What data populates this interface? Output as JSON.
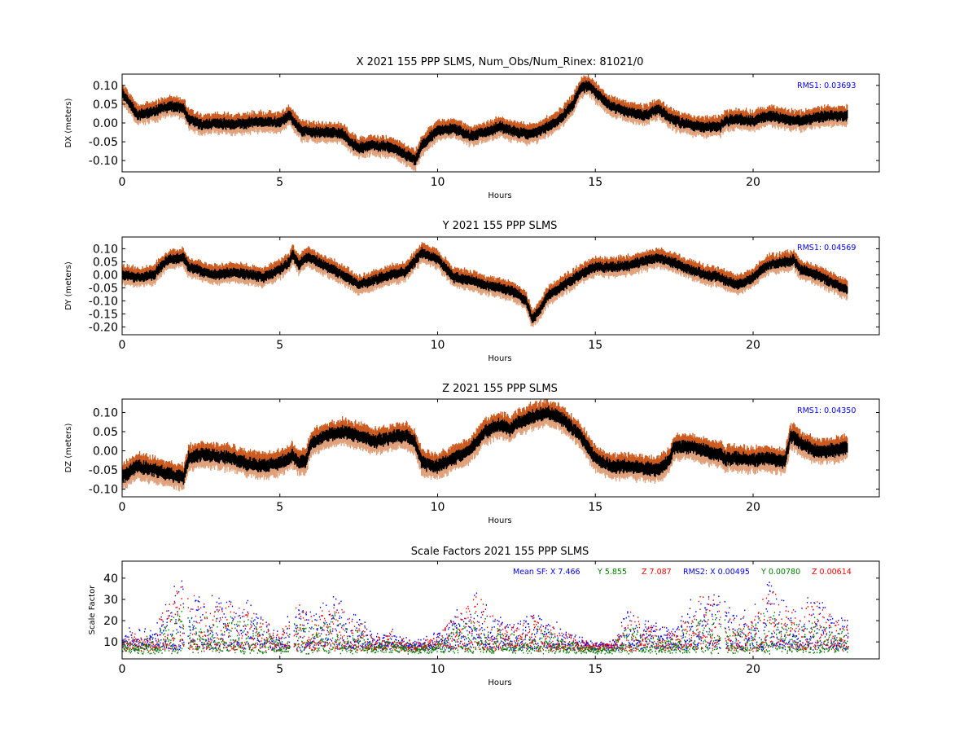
{
  "chart_data": [
    {
      "type": "scatter",
      "title": "X 2021 155 PPP  SLMS, Num_Obs/Num_Rinex: 81021/0",
      "xlabel": "Hours",
      "ylabel": "DX (meters)",
      "xlim": [
        0,
        24
      ],
      "ylim": [
        -0.13,
        0.13
      ],
      "xticks": [
        "0",
        "5",
        "10",
        "15",
        "20"
      ],
      "yticks": [
        "0.10",
        "0.05",
        "0.00",
        "-0.05",
        "-0.10"
      ],
      "annotation": "RMS1:  0.03693",
      "grid": false,
      "series": [
        {
          "x": [
            0,
            0.25,
            0.5,
            1.0,
            1.5,
            1.95,
            2.1,
            2.5,
            3.0,
            3.5,
            4.0,
            4.5,
            5.0,
            5.3,
            5.4,
            5.7,
            6.0,
            6.5,
            7.0,
            7.3,
            7.5,
            8.0,
            8.5,
            9.0,
            9.3,
            9.5,
            10.0,
            10.5,
            11.0,
            11.5,
            12.0,
            12.5,
            13.0,
            13.5,
            14.0,
            14.3,
            14.5,
            14.8,
            15.0,
            15.5,
            16.0,
            16.5,
            17.0,
            17.5,
            18.0,
            18.5,
            18.95,
            19.1,
            19.5,
            20.0,
            20.3,
            20.5,
            21.0,
            21.5,
            22.0,
            22.5,
            23.0
          ],
          "y": [
            0.08,
            0.05,
            0.02,
            0.03,
            0.045,
            0.04,
            0.01,
            -0.005,
            0.0,
            -0.005,
            0.0,
            0.005,
            0.0,
            0.02,
            0.01,
            -0.02,
            -0.025,
            -0.025,
            -0.03,
            -0.055,
            -0.065,
            -0.06,
            -0.065,
            -0.085,
            -0.1,
            -0.06,
            -0.02,
            -0.015,
            -0.035,
            -0.025,
            -0.01,
            -0.025,
            -0.03,
            -0.01,
            0.02,
            0.05,
            0.09,
            0.1,
            0.08,
            0.045,
            0.03,
            0.02,
            0.035,
            0.005,
            -0.005,
            -0.01,
            -0.01,
            0.005,
            0.01,
            0.005,
            0.015,
            0.02,
            0.01,
            0.005,
            0.015,
            0.02,
            0.02
          ],
          "gaps_after": [
            1.95,
            5.3,
            18.95
          ],
          "spread": 0.013
        }
      ]
    },
    {
      "type": "scatter",
      "title": "Y 2021 155 PPP  SLMS",
      "xlabel": "Hours",
      "ylabel": "DY (meters)",
      "xlim": [
        0,
        24
      ],
      "ylim": [
        -0.23,
        0.145
      ],
      "xticks": [
        "0",
        "5",
        "10",
        "15",
        "20"
      ],
      "yticks": [
        "0.10",
        "0.05",
        "0.00",
        "-0.05",
        "-0.10",
        "-0.15",
        "-0.20"
      ],
      "annotation": "RMS1:  0.04569",
      "grid": false,
      "series": [
        {
          "x": [
            0,
            0.5,
            1.0,
            1.3,
            1.5,
            1.95,
            2.1,
            2.5,
            3.0,
            3.5,
            4.0,
            4.5,
            5.0,
            5.3,
            5.4,
            5.6,
            5.9,
            6.5,
            7.0,
            7.5,
            8.0,
            8.5,
            9.0,
            9.5,
            10.0,
            10.5,
            11.0,
            11.5,
            12.0,
            12.5,
            12.8,
            13.0,
            13.2,
            13.5,
            14.0,
            14.5,
            15.0,
            15.5,
            16.0,
            16.5,
            17.0,
            17.5,
            18.0,
            18.5,
            18.95,
            19.1,
            19.5,
            20.0,
            20.5,
            21.0,
            21.3,
            21.5,
            22.0,
            22.5,
            23.0
          ],
          "y": [
            0.0,
            -0.01,
            0.0,
            0.04,
            0.06,
            0.065,
            0.03,
            0.015,
            0.0,
            0.01,
            0.0,
            -0.01,
            0.02,
            0.05,
            0.08,
            0.04,
            0.07,
            0.03,
            0.0,
            -0.04,
            -0.02,
            0.0,
            0.01,
            0.085,
            0.06,
            -0.01,
            -0.02,
            -0.04,
            -0.05,
            -0.07,
            -0.1,
            -0.17,
            -0.14,
            -0.08,
            -0.04,
            0.0,
            0.03,
            0.03,
            0.035,
            0.05,
            0.065,
            0.045,
            0.02,
            0.0,
            -0.01,
            -0.02,
            -0.04,
            -0.01,
            0.04,
            0.05,
            0.055,
            0.02,
            0.0,
            -0.03,
            -0.06
          ],
          "gaps_after": [
            1.95,
            18.95
          ],
          "spread": 0.018
        }
      ]
    },
    {
      "type": "scatter",
      "title": "Z 2021 155 PPP  SLMS",
      "xlabel": "Hours",
      "ylabel": "DZ (meters)",
      "xlim": [
        0,
        24
      ],
      "ylim": [
        -0.12,
        0.135
      ],
      "xticks": [
        "0",
        "5",
        "10",
        "15",
        "20"
      ],
      "yticks": [
        "0.10",
        "0.05",
        "0.00",
        "-0.05",
        "-0.10"
      ],
      "annotation": "RMS1:  0.04350",
      "grid": false,
      "series": [
        {
          "x": [
            0,
            0.3,
            0.5,
            1.0,
            1.5,
            1.95,
            2.1,
            2.5,
            3.0,
            3.5,
            4.0,
            4.5,
            5.0,
            5.3,
            5.4,
            5.6,
            5.8,
            6.0,
            6.5,
            7.0,
            7.5,
            8.0,
            8.5,
            9.0,
            9.3,
            9.5,
            9.8,
            10.0,
            10.5,
            11.0,
            11.5,
            12.0,
            12.3,
            12.5,
            13.0,
            13.5,
            14.0,
            14.5,
            15.0,
            15.5,
            16.0,
            16.5,
            17.0,
            17.3,
            17.5,
            18.0,
            18.5,
            18.95,
            19.1,
            19.5,
            20.0,
            20.5,
            21.0,
            21.2,
            21.4,
            21.5,
            22.0,
            22.5,
            23.0
          ],
          "y": [
            -0.07,
            -0.05,
            -0.04,
            -0.05,
            -0.06,
            -0.07,
            -0.02,
            -0.01,
            -0.015,
            -0.02,
            -0.035,
            -0.04,
            -0.03,
            -0.02,
            -0.01,
            -0.03,
            -0.03,
            0.02,
            0.04,
            0.05,
            0.04,
            0.025,
            0.035,
            0.04,
            0.02,
            -0.03,
            -0.04,
            -0.04,
            -0.02,
            0.0,
            0.05,
            0.07,
            0.055,
            0.07,
            0.09,
            0.1,
            0.08,
            0.04,
            -0.02,
            -0.04,
            -0.04,
            -0.045,
            -0.05,
            -0.03,
            0.01,
            0.01,
            0.0,
            -0.01,
            -0.02,
            -0.02,
            -0.025,
            -0.02,
            -0.03,
            0.04,
            0.03,
            0.02,
            0.0,
            0.0,
            0.01
          ],
          "gaps_after": [
            1.95,
            5.3,
            17.3,
            18.95,
            21.2
          ],
          "spread": 0.016
        }
      ]
    },
    {
      "type": "scatter",
      "title": "Scale Factors 2021 155 PPP  SLMS",
      "xlabel": "Hours",
      "ylabel": "Scale Factor",
      "xlim": [
        0,
        24
      ],
      "ylim": [
        2,
        48
      ],
      "xticks": [
        "0",
        "5",
        "10",
        "15",
        "20"
      ],
      "yticks": [
        "40",
        "30",
        "20",
        "10"
      ],
      "grid": false,
      "legend_text": [
        {
          "label": "Mean SF: X   7.466",
          "color": "#0000ff"
        },
        {
          "label": "Y   5.855",
          "color": "#008000"
        },
        {
          "label": "Z   7.087",
          "color": "#ff0000"
        },
        {
          "label": "RMS2: X  0.00495",
          "color": "#0000ff"
        },
        {
          "label": "Y  0.00780",
          "color": "#008000"
        },
        {
          "label": "Z  0.00614",
          "color": "#ff0000"
        }
      ],
      "series": [
        {
          "name": "X",
          "color": "#0000ff",
          "base": 7.5,
          "amp": 12
        },
        {
          "name": "Z",
          "color": "#ff0000",
          "base": 7.0,
          "amp": 11
        },
        {
          "name": "Y",
          "color": "#008000",
          "base": 5.8,
          "amp": 8
        }
      ],
      "activity": {
        "x": [
          0,
          1.0,
          1.3,
          1.8,
          2.5,
          3.0,
          3.5,
          4.0,
          4.5,
          5.0,
          5.5,
          6.0,
          6.7,
          7.2,
          8.0,
          8.5,
          9.0,
          9.5,
          10.2,
          10.5,
          11.2,
          11.5,
          12.0,
          12.5,
          13.0,
          13.5,
          14.0,
          14.5,
          15.0,
          15.5,
          16.0,
          16.5,
          17.0,
          17.5,
          18.0,
          18.5,
          18.9,
          19.5,
          20.0,
          20.5,
          21.0,
          21.5,
          22.0,
          22.5,
          23.0
        ],
        "a": [
          0.3,
          0.3,
          0.8,
          1.2,
          0.9,
          0.9,
          0.9,
          0.8,
          0.5,
          0.3,
          0.9,
          0.6,
          1.0,
          0.7,
          0.2,
          0.3,
          0.15,
          0.1,
          0.4,
          0.6,
          1.0,
          0.8,
          0.5,
          0.4,
          0.6,
          0.5,
          0.3,
          0.15,
          0.05,
          0.1,
          0.7,
          0.5,
          0.4,
          0.3,
          0.8,
          1.1,
          0.9,
          0.6,
          0.7,
          1.2,
          0.8,
          0.8,
          0.9,
          0.6,
          0.5
        ]
      },
      "gaps_after": [
        1.95,
        5.3,
        18.95
      ]
    }
  ]
}
